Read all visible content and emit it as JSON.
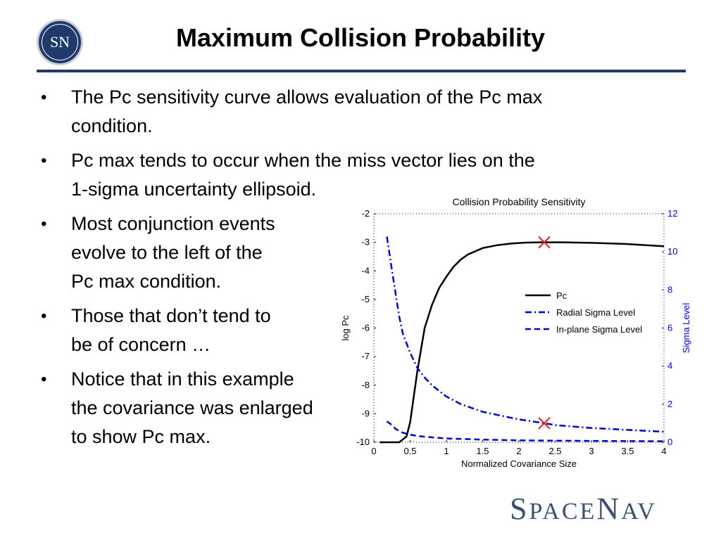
{
  "header": {
    "logo_text": "SN",
    "title": "Maximum Collision Probability"
  },
  "bullets": [
    "The Pc sensitivity curve allows evaluation of the Pc max\ncondition.",
    "Pc max tends to occur when the miss vector lies on the\n1-sigma uncertainty ellipsoid.",
    "Most conjunction events\nevolve to the left of the\nPc max condition.",
    "Those that don’t tend to\nbe of concern …",
    "Notice that in this example\nthe covariance was enlarged\nto show Pc max."
  ],
  "colors": {
    "brand_blue": "#1f3a6b",
    "sigma_blue": "#0000cc",
    "marker_red": "#e02020"
  },
  "chart_data": {
    "type": "line",
    "title": "Collision Probability Sensitivity",
    "xlabel": "Normalized Covariance Size",
    "ylabel": "log Pc",
    "y2label": "Sigma Level",
    "xlim": [
      0,
      4
    ],
    "ylim": [
      -10,
      -2
    ],
    "y2lim": [
      0,
      12
    ],
    "xticks": [
      "0",
      "0.5",
      "1",
      "1.5",
      "2",
      "2.5",
      "3",
      "3.5",
      "4"
    ],
    "yticks": [
      "-2",
      "-3",
      "-4",
      "-5",
      "-6",
      "-7",
      "-8",
      "-9",
      "-10"
    ],
    "y2ticks": [
      "12",
      "10",
      "8",
      "6",
      "4",
      "2",
      "0"
    ],
    "legend_position": "right",
    "series": [
      {
        "name": "Pc",
        "axis": "left",
        "style": "solid",
        "color": "#000000",
        "x": [
          0.08,
          0.35,
          0.45,
          0.5,
          0.6,
          0.7,
          0.8,
          0.9,
          1.0,
          1.1,
          1.2,
          1.3,
          1.5,
          1.7,
          1.9,
          2.1,
          2.35,
          2.6,
          3.0,
          3.5,
          4.0
        ],
        "y": [
          -10.0,
          -10.0,
          -9.8,
          -9.3,
          -7.5,
          -6.0,
          -5.2,
          -4.6,
          -4.2,
          -3.85,
          -3.6,
          -3.42,
          -3.2,
          -3.1,
          -3.04,
          -3.01,
          -3.0,
          -3.0,
          -3.02,
          -3.06,
          -3.14
        ]
      },
      {
        "name": "Radial Sigma Level",
        "axis": "right",
        "style": "dashdot",
        "color": "#0000cc",
        "x": [
          0.18,
          0.25,
          0.3,
          0.35,
          0.4,
          0.5,
          0.6,
          0.7,
          0.8,
          1.0,
          1.2,
          1.5,
          2.0,
          2.35,
          2.5,
          3.0,
          3.5,
          4.0
        ],
        "y": [
          10.8,
          9.0,
          7.8,
          6.6,
          5.7,
          4.7,
          3.9,
          3.4,
          3.0,
          2.4,
          2.0,
          1.6,
          1.2,
          1.0,
          0.9,
          0.75,
          0.65,
          0.55
        ]
      },
      {
        "name": "In-plane Sigma Level",
        "axis": "right",
        "style": "dashed",
        "color": "#0000cc",
        "x": [
          0.18,
          0.25,
          0.3,
          0.4,
          0.5,
          0.6,
          0.8,
          1.0,
          1.5,
          2.0,
          2.35,
          3.0,
          4.0
        ],
        "y": [
          1.1,
          0.9,
          0.7,
          0.5,
          0.4,
          0.33,
          0.26,
          0.2,
          0.14,
          0.1,
          0.09,
          0.07,
          0.05
        ]
      }
    ],
    "markers": [
      {
        "axis": "left",
        "x": 2.35,
        "y": -3.0,
        "color": "#e02020",
        "symbol": "x"
      },
      {
        "axis": "right",
        "x": 2.35,
        "y": 1.0,
        "color": "#e02020",
        "symbol": "x"
      }
    ]
  },
  "brand": {
    "s": "S",
    "pace": "PACE",
    "n": "N",
    "av": "AV"
  }
}
